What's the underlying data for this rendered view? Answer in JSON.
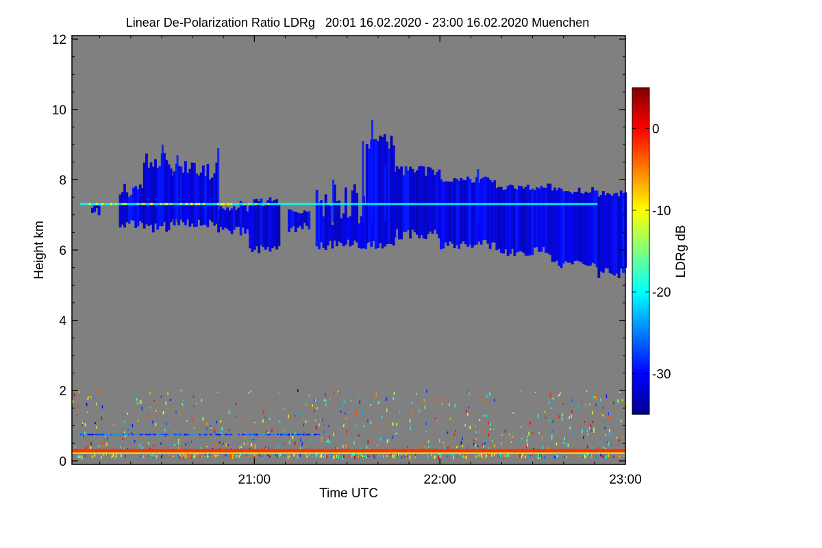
{
  "chart_data": {
    "type": "heatmap",
    "title": "Linear De-Polarization Ratio LDRg   20:01 16.02.2020 - 23:00 16.02.2020 Muenchen",
    "xlabel": "Time UTC",
    "ylabel": "Height km",
    "x_range_hours": [
      20.0167,
      23.0
    ],
    "xticks": [
      {
        "value": 21.0,
        "label": "21:00"
      },
      {
        "value": 22.0,
        "label": "22:00"
      },
      {
        "value": 23.0,
        "label": "23:00"
      }
    ],
    "ylim": [
      -0.1,
      12.1
    ],
    "yticks": [
      0,
      2,
      4,
      6,
      8,
      10,
      12
    ],
    "ytick_labels": [
      "0",
      "2",
      "4",
      "6",
      "8",
      "10",
      "12"
    ],
    "background_color": "#808080",
    "colorbar": {
      "label": "LDRg dB",
      "range": [
        -35,
        5
      ],
      "ticks": [
        0,
        -10,
        -20,
        -30
      ],
      "tick_labels": [
        "0",
        "-10",
        "-20",
        "-30"
      ],
      "colormap": "jet"
    },
    "features": [
      {
        "name": "cirrus-cloud",
        "ldr_db": -31
      },
      {
        "name": "layer-7.3km",
        "height_km": 7.3,
        "ldr_db": -20
      },
      {
        "name": "low-noise-0.75km",
        "height_km": 0.75,
        "ldr_db": -27
      },
      {
        "name": "near-surface-layer",
        "height_km": 0.3,
        "ldr_db": -2
      }
    ]
  }
}
